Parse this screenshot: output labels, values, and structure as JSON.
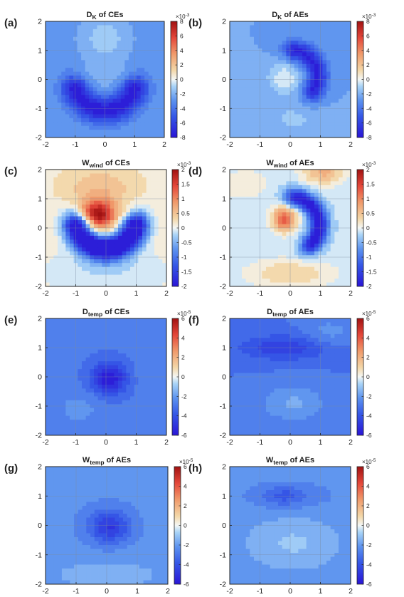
{
  "chart_data": [
    {
      "id": "a",
      "label": "(a)",
      "title": "D",
      "title_sub": "K",
      "title_rest": " of CEs",
      "type": "heatmap",
      "xlim": [
        -2,
        2
      ],
      "ylim": [
        -2,
        2
      ],
      "x_ticks": [
        "-2",
        "-1",
        "0",
        "1",
        "2"
      ],
      "y_ticks": [
        "2",
        "1",
        "0",
        "-1",
        "-2"
      ],
      "colorbar": {
        "exponent": "×10",
        "exponent_power": "-3",
        "ticks": [
          "8",
          "6",
          "4",
          "2",
          "0",
          "-2",
          "-4",
          "-6",
          "-8"
        ],
        "range": [
          -8,
          8
        ]
      },
      "field": {
        "base": -2.7,
        "blobs": [
          {
            "name": "arc",
            "kind": "arc",
            "center": [
              0,
              0
            ],
            "radius": 1.05,
            "theta_min": 200,
            "theta_max": 340,
            "width": 0.32,
            "amp": -5.2
          },
          {
            "name": "top-light",
            "kind": "gauss",
            "center": [
              0,
              1.4
            ],
            "sx": 0.55,
            "sy": 0.55,
            "amp": 1.6
          },
          {
            "name": "center-light",
            "kind": "gauss",
            "center": [
              0,
              0.1
            ],
            "sx": 0.4,
            "sy": 0.35,
            "amp": 0.9
          }
        ]
      }
    },
    {
      "id": "b",
      "label": "(b)",
      "title": "D",
      "title_sub": "K",
      "title_rest": " of AEs",
      "type": "heatmap",
      "xlim": [
        -2,
        2
      ],
      "ylim": [
        -2,
        2
      ],
      "x_ticks": [
        "-2",
        "-1",
        "0",
        "1",
        "2"
      ],
      "y_ticks": [
        "2",
        "1",
        "0",
        "-1",
        "-2"
      ],
      "colorbar": {
        "exponent": "×10",
        "exponent_power": "-3",
        "ticks": [
          "8",
          "6",
          "4",
          "2",
          "0",
          "-2",
          "-4",
          "-6",
          "-8"
        ],
        "range": [
          -8,
          8
        ]
      },
      "field": {
        "base": -2.4,
        "blobs": [
          {
            "name": "crescent",
            "kind": "arc",
            "center": [
              0,
              0.1
            ],
            "radius": 0.9,
            "theta_min": -30,
            "theta_max": 80,
            "width": 0.25,
            "amp": -5.0
          },
          {
            "name": "center-light",
            "kind": "gauss",
            "center": [
              -0.2,
              0.05
            ],
            "sx": 0.38,
            "sy": 0.38,
            "amp": 2.2
          },
          {
            "name": "bottom-light",
            "kind": "gauss",
            "center": [
              0.1,
              -1.35
            ],
            "sx": 0.6,
            "sy": 0.35,
            "amp": 1.0
          }
        ]
      }
    },
    {
      "id": "c",
      "label": "(c)",
      "title": "W",
      "title_sub": "wind",
      "title_rest": " of CEs",
      "type": "heatmap",
      "xlim": [
        -2,
        2
      ],
      "ylim": [
        -2,
        2
      ],
      "x_ticks": [
        "-2",
        "-1",
        "0",
        "1",
        "2"
      ],
      "y_ticks": [
        "2",
        "1",
        "0",
        "-1",
        "-2"
      ],
      "colorbar": {
        "exponent": "×10",
        "exponent_power": "-3",
        "ticks": [
          "2",
          "1.5",
          "1",
          "0.5",
          "0",
          "-0.5",
          "-1",
          "-1.5",
          "-2"
        ],
        "range": [
          -2,
          2
        ]
      },
      "field": {
        "base": 0.1,
        "blobs": [
          {
            "name": "arc",
            "kind": "arc",
            "center": [
              0,
              0.3
            ],
            "radius": 1.0,
            "theta_min": 195,
            "theta_max": 345,
            "width": 0.3,
            "amp": -2.6
          },
          {
            "name": "center-red",
            "kind": "gauss",
            "center": [
              -0.25,
              0.45
            ],
            "sx": 0.4,
            "sy": 0.35,
            "amp": 1.85
          },
          {
            "name": "top-warm",
            "kind": "gauss",
            "center": [
              -0.2,
              1.4
            ],
            "sx": 0.9,
            "sy": 0.5,
            "amp": 0.45
          },
          {
            "name": "bottom-cool",
            "kind": "gauss",
            "center": [
              0,
              -1.5
            ],
            "sx": 1.5,
            "sy": 0.5,
            "amp": -0.3
          }
        ]
      }
    },
    {
      "id": "d",
      "label": "(d)",
      "title": "W",
      "title_sub": "wind",
      "title_rest": " of AEs",
      "type": "heatmap",
      "xlim": [
        -2,
        2
      ],
      "ylim": [
        -2,
        2
      ],
      "x_ticks": [
        "-2",
        "-1",
        "0",
        "1",
        "2"
      ],
      "y_ticks": [
        "2",
        "1",
        "0",
        "-1",
        "-2"
      ],
      "colorbar": {
        "exponent": "×10",
        "exponent_power": "-3",
        "ticks": [
          "2",
          "1.5",
          "1",
          "0.5",
          "0",
          "-0.5",
          "-1",
          "-1.5",
          "-2"
        ],
        "range": [
          -2,
          2
        ]
      },
      "field": {
        "base": -0.15,
        "blobs": [
          {
            "name": "crescent",
            "kind": "arc",
            "center": [
              0,
              0.1
            ],
            "radius": 0.95,
            "theta_min": -40,
            "theta_max": 75,
            "width": 0.22,
            "amp": -1.9
          },
          {
            "name": "center-red",
            "kind": "gauss",
            "center": [
              -0.2,
              0.3
            ],
            "sx": 0.28,
            "sy": 0.3,
            "amp": 1.5
          },
          {
            "name": "top-warm",
            "kind": "gauss",
            "center": [
              1.1,
              1.9
            ],
            "sx": 0.5,
            "sy": 0.3,
            "amp": 0.8
          },
          {
            "name": "bottom-warm",
            "kind": "gauss",
            "center": [
              0,
              -1.55
            ],
            "sx": 1.0,
            "sy": 0.35,
            "amp": 0.55
          },
          {
            "name": "top-left-warm",
            "kind": "gauss",
            "center": [
              -1.5,
              1.5
            ],
            "sx": 0.6,
            "sy": 0.4,
            "amp": 0.3
          }
        ]
      }
    },
    {
      "id": "e",
      "label": "(e)",
      "title": "D",
      "title_sub": "temp",
      "title_rest": " of CEs",
      "type": "heatmap",
      "xlim": [
        -2,
        2
      ],
      "ylim": [
        -2,
        2
      ],
      "x_ticks": [
        "-2",
        "-1",
        "0",
        "1",
        "2"
      ],
      "y_ticks": [
        "2",
        "1",
        "0",
        "-1",
        "-2"
      ],
      "colorbar": {
        "exponent": "×10",
        "exponent_power": "-5",
        "ticks": [
          "6",
          "4",
          "2",
          "0",
          "-2",
          "-4",
          "-6"
        ],
        "range": [
          -6,
          6
        ]
      },
      "field": {
        "base": -2.9,
        "blobs": [
          {
            "name": "center-blue",
            "kind": "gauss",
            "center": [
              0.1,
              -0.05
            ],
            "sx": 0.4,
            "sy": 0.37,
            "amp": -3.1
          },
          {
            "name": "lower-left-light",
            "kind": "gauss",
            "center": [
              -0.9,
              -1.1
            ],
            "sx": 0.6,
            "sy": 0.45,
            "amp": 0.7
          },
          {
            "name": "right-light",
            "kind": "gauss",
            "center": [
              1.5,
              0.2
            ],
            "sx": 0.4,
            "sy": 0.8,
            "amp": 0.3
          }
        ]
      }
    },
    {
      "id": "f",
      "label": "(f)",
      "title": "D",
      "title_sub": "temp",
      "title_rest": " of AEs",
      "type": "heatmap",
      "xlim": [
        -2,
        2
      ],
      "ylim": [
        -2,
        2
      ],
      "x_ticks": [
        "-2",
        "-1",
        "0",
        "1",
        "2"
      ],
      "y_ticks": [
        "2",
        "1",
        "0",
        "-1",
        "-2"
      ],
      "colorbar": {
        "exponent": "×10",
        "exponent_power": "-5",
        "ticks": [
          "6",
          "4",
          "2",
          "0",
          "-2",
          "-4",
          "-6"
        ],
        "range": [
          -6,
          6
        ]
      },
      "field": {
        "base": -3.0,
        "blobs": [
          {
            "name": "top-band",
            "kind": "gauss",
            "center": [
              -0.2,
              1.0
            ],
            "sx": 1.1,
            "sy": 0.3,
            "amp": -1.6
          },
          {
            "name": "center-light",
            "kind": "gauss",
            "center": [
              0.1,
              -0.9
            ],
            "sx": 0.75,
            "sy": 0.45,
            "amp": 1.3
          },
          {
            "name": "upper-right-light",
            "kind": "gauss",
            "center": [
              1.3,
              1.5
            ],
            "sx": 0.55,
            "sy": 0.35,
            "amp": 0.9
          }
        ]
      }
    },
    {
      "id": "g",
      "label": "(g)",
      "title": "W",
      "title_sub": "temp",
      "title_rest": " of AEs",
      "type": "heatmap",
      "xlim": [
        -2,
        2
      ],
      "ylim": [
        -2,
        2
      ],
      "x_ticks": [
        "-2",
        "-1",
        "0",
        "1",
        "2"
      ],
      "y_ticks": [
        "2",
        "1",
        "0",
        "-1",
        "-2"
      ],
      "colorbar": {
        "exponent": "×10",
        "exponent_power": "-5",
        "ticks": [
          "6",
          "4",
          "2",
          "0",
          "-2",
          "-4",
          "-6"
        ],
        "range": [
          -6,
          6
        ]
      },
      "field": {
        "base": -2.0,
        "blobs": [
          {
            "name": "center-blue",
            "kind": "gauss",
            "center": [
              0.1,
              -0.05
            ],
            "sx": 0.45,
            "sy": 0.38,
            "amp": -2.3
          },
          {
            "name": "ring",
            "kind": "gauss",
            "center": [
              0,
              0
            ],
            "sx": 1.0,
            "sy": 0.8,
            "amp": -0.6
          },
          {
            "name": "bottom-light",
            "kind": "gauss",
            "center": [
              0,
              -1.6
            ],
            "sx": 1.4,
            "sy": 0.5,
            "amp": 0.4
          }
        ]
      }
    },
    {
      "id": "h",
      "label": "(h)",
      "title": "W",
      "title_sub": "temp",
      "title_rest": " of AEs",
      "type": "heatmap",
      "xlim": [
        -2,
        2
      ],
      "ylim": [
        -2,
        2
      ],
      "x_ticks": [
        "-2",
        "-1",
        "0",
        "1",
        "2"
      ],
      "y_ticks": [
        "2",
        "1",
        "0",
        "-1",
        "-2"
      ],
      "colorbar": {
        "exponent": "×10",
        "exponent_power": "-5",
        "ticks": [
          "6",
          "4",
          "2",
          "0",
          "-2",
          "-4",
          "-6"
        ],
        "range": [
          -6,
          6
        ]
      },
      "field": {
        "base": -2.1,
        "blobs": [
          {
            "name": "top-blue",
            "kind": "gauss",
            "center": [
              -0.2,
              1.0
            ],
            "sx": 0.5,
            "sy": 0.22,
            "amp": -1.3
          },
          {
            "name": "center-light",
            "kind": "gauss",
            "center": [
              0.1,
              -0.6
            ],
            "sx": 1.0,
            "sy": 0.6,
            "amp": 1.0
          },
          {
            "name": "top-band",
            "kind": "gauss",
            "center": [
              0,
              1.0
            ],
            "sx": 1.4,
            "sy": 0.4,
            "amp": -0.5
          }
        ]
      }
    }
  ]
}
